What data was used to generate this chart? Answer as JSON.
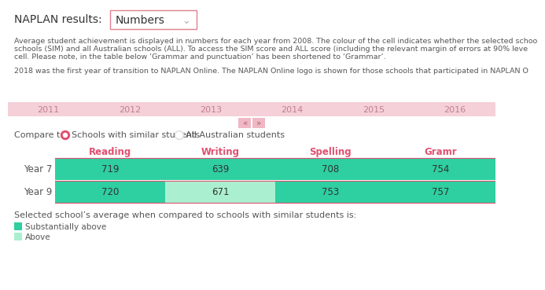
{
  "title_label": "NAPLAN results:",
  "dropdown_text": "Numbers",
  "dropdown_arrow": "⌄",
  "body_text1_lines": [
    "Average student achievement is displayed in numbers for each year from 2008. The colour of the cell indicates whether the selected schoo",
    "schools (SIM) and all Australian schools (ALL). To access the SIM score and ALL score (including the relevant margin of errors at 90% leve",
    "cell. Please note, in the table below ‘Grammar and punctuation’ has been shortened to ‘Grammar’."
  ],
  "body_text2": "2018 was the first year of transition to NAPLAN Online. The NAPLAN Online logo is shown for those schools that participated in NAPLAN O",
  "year_labels": [
    "2011",
    "2012",
    "2013",
    "2014",
    "2015",
    "2016"
  ],
  "year_bar_color": "#f5d0d8",
  "year_text_color": "#c08090",
  "nav_color": "#f0b8c4",
  "nav_symbols": [
    "«",
    "»"
  ],
  "compare_text": "Compare to",
  "radio1_text": "Schools with similar students",
  "radio2_text": "All Australian students",
  "radio1_fill": "#e05070",
  "radio2_fill": "#cccccc",
  "col_headers": [
    "Reading",
    "Writing",
    "Spelling",
    "Gramr"
  ],
  "col_header_color": "#e05070",
  "row_labels": [
    "Year 7",
    "Year 9"
  ],
  "data": {
    "Year 7": [
      719,
      639,
      708,
      754
    ],
    "Year 9": [
      720,
      671,
      753,
      757
    ]
  },
  "cell_colors": {
    "Year 7": [
      "#2ecfa0",
      "#2ecfa0",
      "#2ecfa0",
      "#2ecfa0"
    ],
    "Year 9": [
      "#2ecfa0",
      "#aaf0d0",
      "#2ecfa0",
      "#2ecfa0"
    ]
  },
  "row_sep_color": "#e05070",
  "footer_text": "Selected school’s average when compared to schools with similar students is:",
  "legend": [
    {
      "label": "Substantially above",
      "color": "#2ecfa0"
    },
    {
      "label": "Above",
      "color": "#aaf0d0"
    }
  ],
  "bg_color": "#ffffff",
  "text_color": "#555555",
  "title_color": "#333333"
}
